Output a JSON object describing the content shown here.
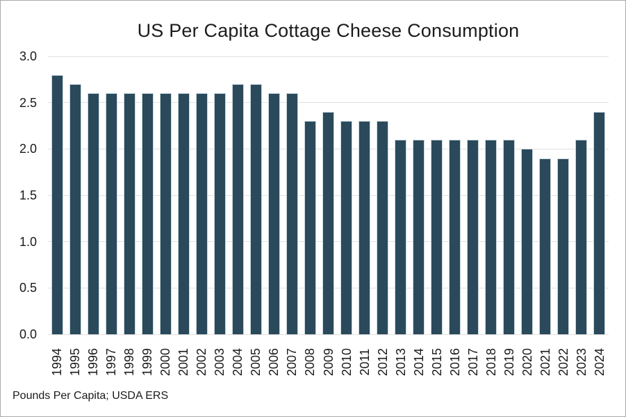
{
  "chart": {
    "title": "US Per Capita Cottage Cheese Consumption",
    "footer": "Pounds Per Capita; USDA ERS"
  },
  "colors": {
    "bar_fill": "#2a4a5c",
    "bar_edge": "#c9d7de",
    "gridline": "#e0e0e0",
    "text": "#1a1a1a",
    "frame_border": "#a9a9a9",
    "background": "#ffffff"
  },
  "chart_data": {
    "type": "bar",
    "title": "US Per Capita Cottage Cheese Consumption",
    "footnote": "Pounds Per Capita; USDA ERS",
    "xlabel": "",
    "ylabel": "",
    "categories": [
      "1994",
      "1995",
      "1996",
      "1997",
      "1998",
      "1999",
      "2000",
      "2001",
      "2002",
      "2003",
      "2004",
      "2005",
      "2006",
      "2007",
      "2008",
      "2009",
      "2010",
      "2011",
      "2012",
      "2013",
      "2014",
      "2015",
      "2016",
      "2017",
      "2018",
      "2019",
      "2020",
      "2021",
      "2022",
      "2023",
      "2024"
    ],
    "values": [
      2.8,
      2.7,
      2.6,
      2.6,
      2.6,
      2.6,
      2.6,
      2.6,
      2.6,
      2.6,
      2.7,
      2.7,
      2.6,
      2.6,
      2.3,
      2.4,
      2.3,
      2.3,
      2.3,
      2.1,
      2.1,
      2.1,
      2.1,
      2.1,
      2.1,
      2.1,
      2.0,
      1.9,
      1.9,
      2.1,
      2.4
    ],
    "ylim": [
      0.0,
      3.0
    ],
    "yticks": [
      0.0,
      0.5,
      1.0,
      1.5,
      2.0,
      2.5,
      3.0
    ],
    "ytick_labels": [
      "0.0",
      "0.5",
      "1.0",
      "1.5",
      "2.0",
      "2.5",
      "3.0"
    ],
    "grid": true,
    "legend": false,
    "xtick_rotation": 90
  }
}
